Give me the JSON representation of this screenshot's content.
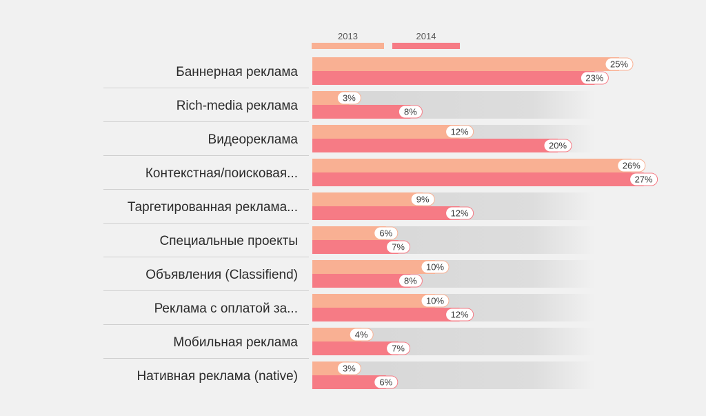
{
  "colors": {
    "background": "#f1f1f1",
    "series_2013": "#f9b093",
    "series_2014": "#f67b85",
    "track": "#dcdcdc",
    "label_fill": "#ffffff",
    "separator": "#cfcfcf",
    "text": "#2b2b2b"
  },
  "chart_data": {
    "type": "bar",
    "orientation": "horizontal",
    "categories": [
      "Баннерная реклама",
      "Rich-media реклама",
      "Видеореклама",
      "Контекстная/поисковая...",
      "Таргетированная реклама...",
      "Специальные проекты",
      "Объявления (Classifiend)",
      "Реклама с оплатой за...",
      "Мобильная реклама",
      "Нативная реклама  (native)"
    ],
    "series": [
      {
        "name": "2013",
        "values": [
          25,
          3,
          12,
          26,
          9,
          6,
          10,
          10,
          4,
          3
        ],
        "labels": [
          "25%",
          "3%",
          "12%",
          "26%",
          "9%",
          "6%",
          "10%",
          "10%",
          "4%",
          "3%"
        ]
      },
      {
        "name": "2014",
        "values": [
          23,
          8,
          20,
          27,
          12,
          7,
          8,
          12,
          7,
          6
        ],
        "labels": [
          "23%",
          "8%",
          "20%",
          "27%",
          "12%",
          "7%",
          "8%",
          "12%",
          "7%",
          "6%"
        ]
      }
    ],
    "xlim": [
      0,
      30
    ],
    "legend_position": "top",
    "grid": false,
    "value_labels": true
  }
}
